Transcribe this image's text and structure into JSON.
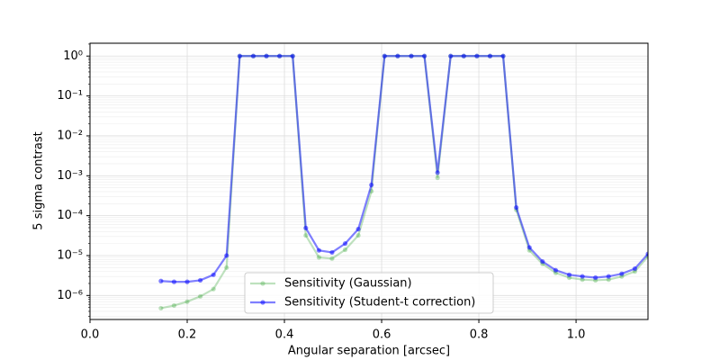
{
  "chart_data": {
    "type": "line",
    "x_label": "Angular separation [arcsec]",
    "y_label": "5 sigma contrast",
    "x": [
      0.146,
      0.173,
      0.2,
      0.227,
      0.254,
      0.281,
      0.308,
      0.336,
      0.363,
      0.39,
      0.417,
      0.444,
      0.471,
      0.498,
      0.525,
      0.552,
      0.579,
      0.606,
      0.633,
      0.661,
      0.688,
      0.715,
      0.742,
      0.769,
      0.796,
      0.823,
      0.85,
      0.877,
      0.904,
      0.931,
      0.958,
      0.986,
      1.013,
      1.04,
      1.067,
      1.094,
      1.121,
      1.148
    ],
    "series": [
      {
        "name": "Sensitivity (Gaussian)",
        "color": "#2ca02c",
        "opacity": 0.3,
        "values": [
          4.8e-07,
          5.6e-07,
          7e-07,
          9.5e-07,
          1.45e-06,
          5e-06,
          1,
          1,
          1,
          1,
          1,
          3.2e-05,
          9e-06,
          8.4e-06,
          1.4e-05,
          3.2e-05,
          0.00041,
          1,
          1,
          1,
          1,
          0.00089,
          1,
          1,
          1,
          1,
          1,
          0.00014,
          1.35e-05,
          6.2e-06,
          3.7e-06,
          2.8e-06,
          2.5e-06,
          2.4e-06,
          2.5e-06,
          3e-06,
          4e-06,
          9.5e-06
        ]
      },
      {
        "name": "Sensitivity (Student-t correction)",
        "color": "#0000ff",
        "opacity": 0.5,
        "values": [
          2.3e-06,
          2.2e-06,
          2.2e-06,
          2.4e-06,
          3.3e-06,
          1e-05,
          1,
          1,
          1,
          1,
          1,
          4.9e-05,
          1.35e-05,
          1.2e-05,
          2e-05,
          4.6e-05,
          0.00059,
          1,
          1,
          1,
          1,
          0.0012,
          1,
          1,
          1,
          1,
          1,
          0.00016,
          1.6e-05,
          7.1e-06,
          4.3e-06,
          3.3e-06,
          3e-06,
          2.8e-06,
          3e-06,
          3.5e-06,
          4.7e-06,
          1.1e-05
        ]
      }
    ],
    "xlim": [
      0,
      1.148
    ],
    "xticks": [
      {
        "value": 0,
        "label": "0.0"
      },
      0.2,
      0.4,
      0.6,
      0.8,
      {
        "value": 1,
        "label": "1.0"
      }
    ],
    "ylim": [
      2.5e-07,
      2.1
    ],
    "yscale": "log",
    "yticks": [
      {
        "value": 1e-06,
        "label": "10⁻⁶"
      },
      {
        "value": 1e-05,
        "label": "10⁻⁵"
      },
      {
        "value": 0.0001,
        "label": "10⁻⁴"
      },
      {
        "value": 0.001,
        "label": "10⁻³"
      },
      {
        "value": 0.01,
        "label": "10⁻²"
      },
      {
        "value": 0.1,
        "label": "10⁻¹"
      },
      {
        "value": 1,
        "label": "10⁰"
      }
    ],
    "grid": true,
    "legend": "lower center"
  }
}
